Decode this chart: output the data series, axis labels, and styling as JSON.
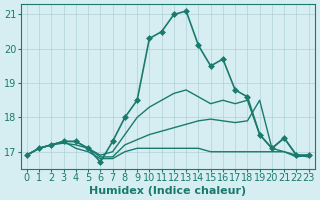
{
  "xlabel": "Humidex (Indice chaleur)",
  "ylabel": "",
  "background_color": "#d6eef2",
  "grid_color": "#b0d0d8",
  "line_color": "#1a7a6e",
  "xlim": [
    -0.5,
    23.5
  ],
  "ylim": [
    16.5,
    21.3
  ],
  "yticks": [
    17,
    18,
    19,
    20,
    21
  ],
  "xticks": [
    0,
    1,
    2,
    3,
    4,
    5,
    6,
    7,
    8,
    9,
    10,
    11,
    12,
    13,
    14,
    15,
    16,
    17,
    18,
    19,
    20,
    21,
    22,
    23
  ],
  "series": [
    {
      "x": [
        0,
        1,
        2,
        3,
        4,
        5,
        6,
        7,
        8,
        9,
        10,
        11,
        12,
        13,
        14,
        15,
        16,
        17,
        18,
        19,
        20,
        21,
        22,
        23
      ],
      "y": [
        16.9,
        17.1,
        17.2,
        17.3,
        17.3,
        17.1,
        16.7,
        17.3,
        18.0,
        18.5,
        20.3,
        20.5,
        21.0,
        21.1,
        20.1,
        19.5,
        19.7,
        18.8,
        18.6,
        17.5,
        17.1,
        17.4,
        16.9,
        16.9
      ],
      "marker": "D",
      "markersize": 3,
      "linewidth": 1.2
    },
    {
      "x": [
        0,
        1,
        2,
        3,
        4,
        5,
        6,
        7,
        8,
        9,
        10,
        11,
        12,
        13,
        14,
        15,
        16,
        17,
        18,
        19,
        20,
        21,
        22,
        23
      ],
      "y": [
        16.9,
        17.1,
        17.2,
        17.25,
        17.2,
        17.1,
        16.85,
        16.85,
        17.2,
        17.35,
        17.5,
        17.6,
        17.7,
        17.8,
        17.9,
        17.95,
        17.9,
        17.85,
        17.9,
        18.5,
        17.1,
        17.0,
        16.85,
        16.9
      ],
      "marker": null,
      "markersize": 0,
      "linewidth": 1.0
    },
    {
      "x": [
        0,
        1,
        2,
        3,
        4,
        5,
        6,
        7,
        8,
        9,
        10,
        11,
        12,
        13,
        14,
        15,
        16,
        17,
        18,
        19,
        20,
        21,
        22,
        23
      ],
      "y": [
        16.9,
        17.1,
        17.2,
        17.3,
        17.1,
        17.0,
        16.8,
        16.8,
        17.0,
        17.1,
        17.1,
        17.1,
        17.1,
        17.1,
        17.1,
        17.0,
        17.0,
        17.0,
        17.0,
        17.0,
        17.0,
        17.0,
        16.9,
        16.9
      ],
      "marker": null,
      "markersize": 0,
      "linewidth": 1.0
    },
    {
      "x": [
        0,
        1,
        2,
        3,
        4,
        5,
        6,
        7,
        8,
        9,
        10,
        11,
        12,
        13,
        14,
        15,
        16,
        17,
        18,
        19,
        20,
        21,
        22,
        23
      ],
      "y": [
        16.9,
        17.1,
        17.2,
        17.3,
        17.3,
        17.1,
        16.9,
        17.0,
        17.5,
        18.0,
        18.3,
        18.5,
        18.7,
        18.8,
        18.6,
        18.4,
        18.5,
        18.4,
        18.5,
        17.5,
        17.1,
        17.4,
        16.9,
        16.85
      ],
      "marker": null,
      "markersize": 0,
      "linewidth": 1.0
    }
  ],
  "tick_fontsize": 7,
  "label_fontsize": 8
}
